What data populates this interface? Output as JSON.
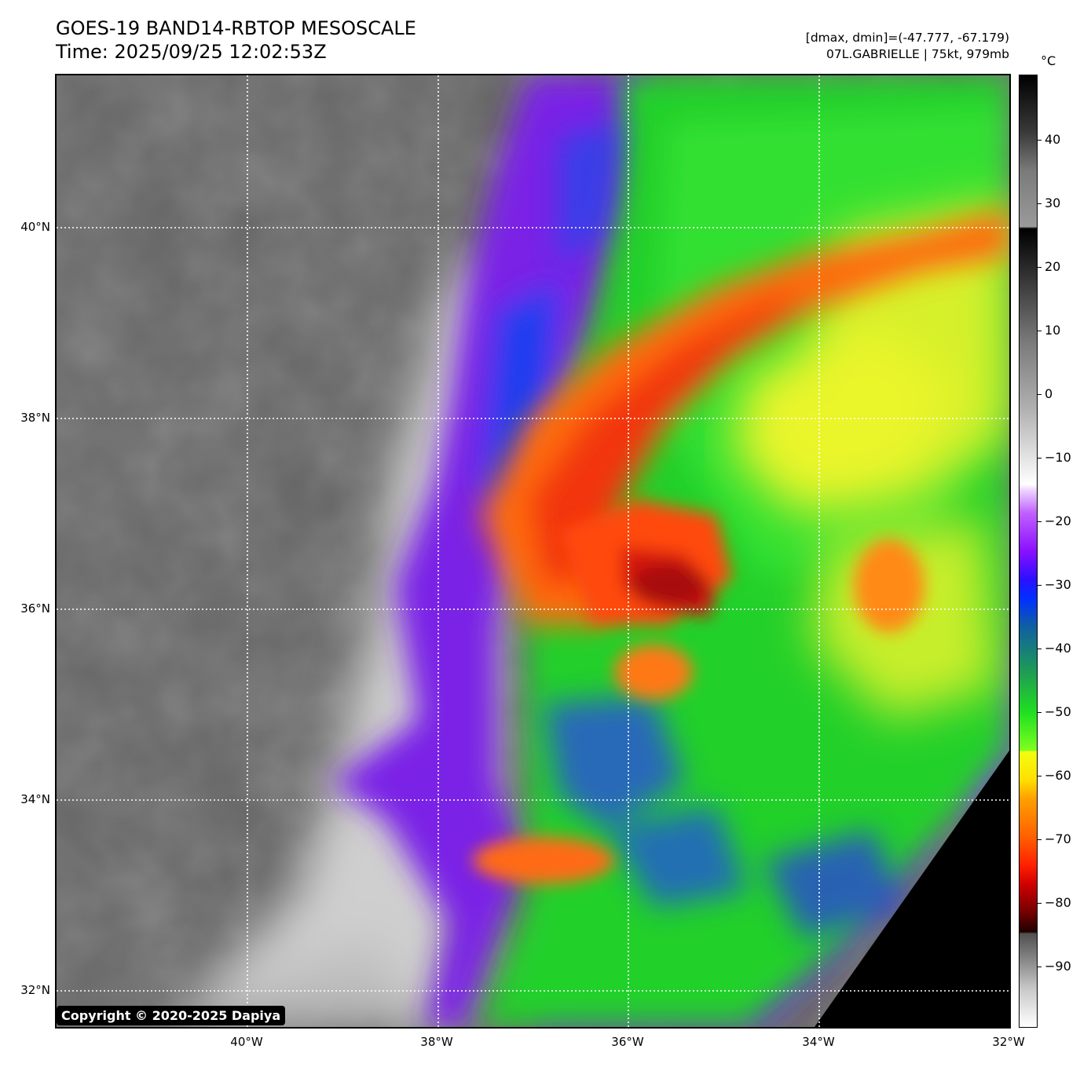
{
  "header": {
    "title_line1": "GOES-19 BAND14-RBTOP MESOSCALE",
    "title_line2": "Time: 2025/09/25 12:02:53Z",
    "info_line1": "[dmax, dmin]=(-47.777, -67.179)",
    "info_line2": "07L.GABRIELLE | 75kt, 979mb"
  },
  "map": {
    "lat_labels": [
      "40°N",
      "38°N",
      "36°N",
      "34°N",
      "32°N"
    ],
    "lon_labels": [
      "40°W",
      "38°W",
      "36°W",
      "34°W",
      "32°W"
    ],
    "lat_range": [
      31.6,
      41.6
    ],
    "lon_range": [
      -42,
      -32
    ]
  },
  "colorbar": {
    "unit": "°C",
    "labels": [
      "40",
      "30",
      "20",
      "10",
      "0",
      "−10",
      "−20",
      "−30",
      "−40",
      "−50",
      "−60",
      "−70",
      "−80",
      "−90"
    ],
    "range": [
      -100,
      50
    ]
  },
  "copyright": "Copyright © 2020-2025 Dapiya"
}
